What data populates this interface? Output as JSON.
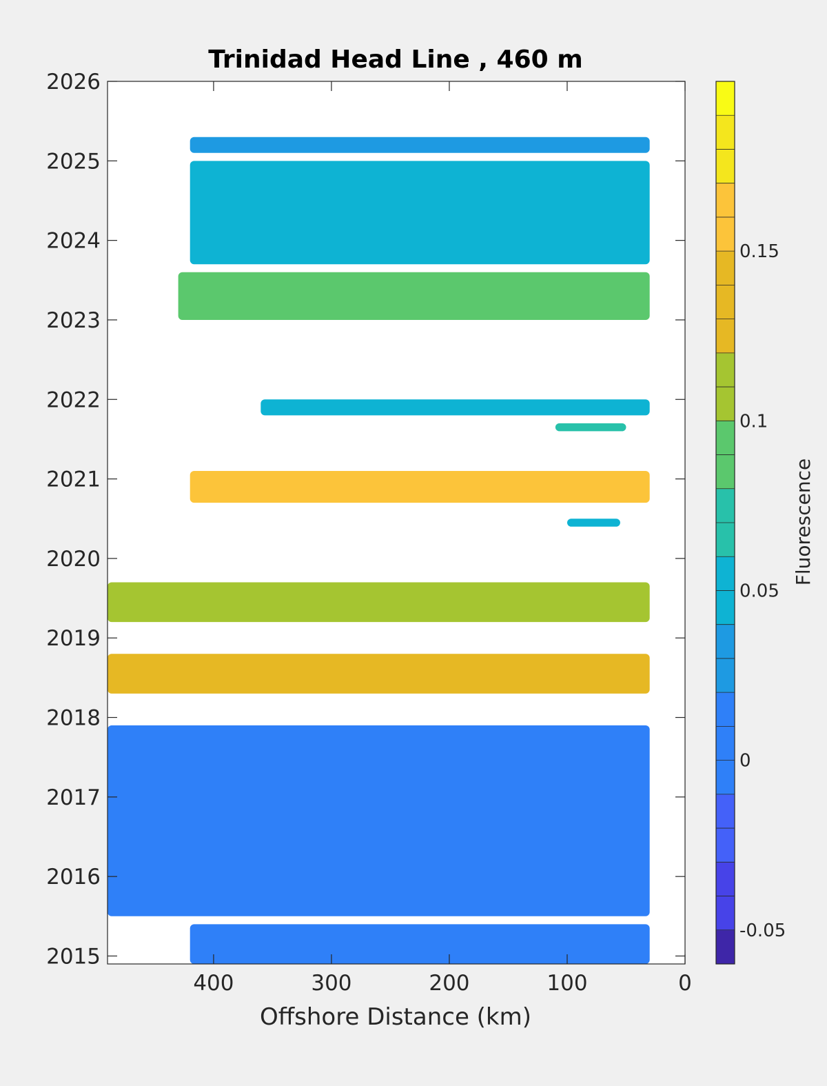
{
  "chart_data": {
    "type": "heatmap",
    "title": "Trinidad Head Line , 460 m",
    "xlabel": "Offshore Distance (km)",
    "ylabel": "",
    "xlim": [
      490,
      0
    ],
    "x_direction": "reversed",
    "ylim": [
      2014.9,
      2026
    ],
    "x_ticks": [
      "400",
      "300",
      "200",
      "100",
      "0"
    ],
    "y_ticks": [
      "2015",
      "2016",
      "2017",
      "2018",
      "2019",
      "2020",
      "2021",
      "2022",
      "2023",
      "2024",
      "2025",
      "2026"
    ],
    "colorbar": {
      "label": "Fluorescence",
      "range": [
        -0.06,
        0.2
      ],
      "levels": 26,
      "ticks": [
        "-0.05",
        "0",
        "0.05",
        "0.1",
        "0.15"
      ],
      "colormap": "parula",
      "colors": [
        "#3e26a8",
        "#4743e8",
        "#4461f9",
        "#2f80f8",
        "#1e9ae2",
        "#0eb3d3",
        "#28c1aa",
        "#5bc86d",
        "#a5c531",
        "#e6b824",
        "#fcc43a",
        "#f4e61d",
        "#f9fb15"
      ]
    },
    "bands": [
      {
        "y_start": 2025.1,
        "y_end": 2025.3,
        "x_far": 420,
        "x_near": 30,
        "mean_value": 0.03
      },
      {
        "y_start": 2023.7,
        "y_end": 2025.0,
        "x_far": 420,
        "x_near": 30,
        "mean_value": 0.045
      },
      {
        "y_start": 2023.0,
        "y_end": 2023.6,
        "x_far": 430,
        "x_near": 30,
        "mean_value": 0.1
      },
      {
        "y_start": 2021.8,
        "y_end": 2022.0,
        "x_far": 360,
        "x_near": 30,
        "mean_value": 0.04
      },
      {
        "y_start": 2021.6,
        "y_end": 2021.7,
        "x_far": 110,
        "x_near": 50,
        "mean_value": 0.08
      },
      {
        "y_start": 2020.7,
        "y_end": 2021.1,
        "x_far": 420,
        "x_near": 30,
        "mean_value": 0.16
      },
      {
        "y_start": 2020.4,
        "y_end": 2020.5,
        "x_far": 100,
        "x_near": 55,
        "mean_value": 0.05
      },
      {
        "y_start": 2019.2,
        "y_end": 2019.7,
        "x_far": 490,
        "x_near": 30,
        "mean_value": 0.11
      },
      {
        "y_start": 2018.3,
        "y_end": 2018.8,
        "x_far": 490,
        "x_near": 30,
        "mean_value": 0.13
      },
      {
        "y_start": 2015.5,
        "y_end": 2017.9,
        "x_far": 490,
        "x_near": 30,
        "mean_value": 0.0
      },
      {
        "y_start": 2014.9,
        "y_end": 2015.4,
        "x_far": 420,
        "x_near": 30,
        "mean_value": 0.01
      }
    ]
  }
}
